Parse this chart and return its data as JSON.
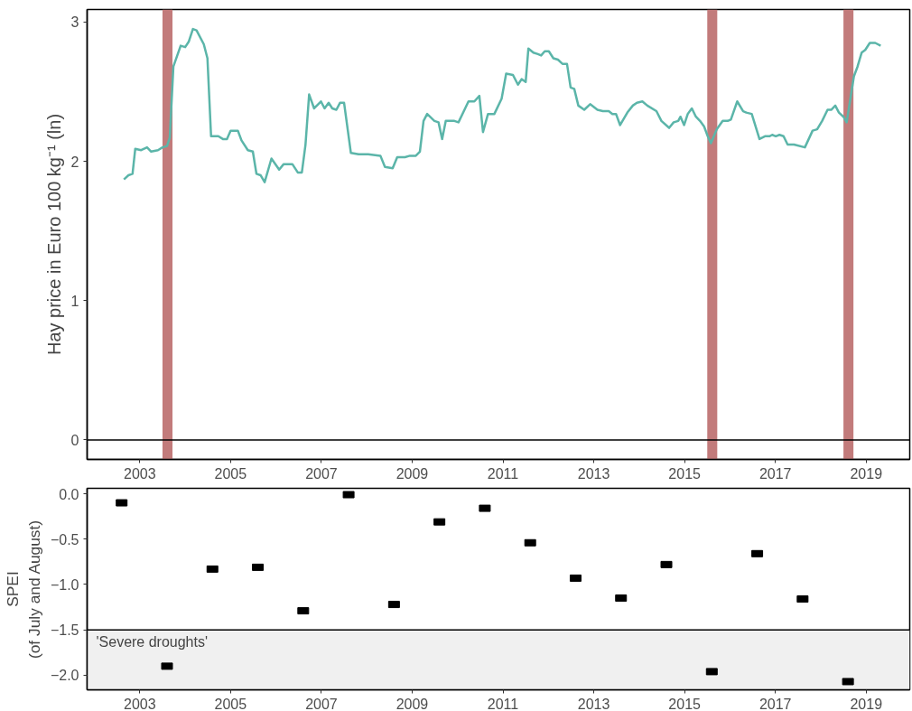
{
  "chart_data": [
    {
      "type": "line",
      "ylabel": "Hay price in Euro 100 kg⁻¹ (ln)",
      "xlim": [
        2001.84,
        2019.96
      ],
      "ylim": [
        -0.14,
        3.09
      ],
      "xticks": [
        2003,
        2005,
        2007,
        2009,
        2011,
        2013,
        2015,
        2017,
        2019
      ],
      "yticks": [
        0,
        1,
        2,
        3
      ],
      "grid": false,
      "line_style": "solid",
      "x": [
        2002.65,
        2002.75,
        2002.84,
        2002.9,
        2003.03,
        2003.16,
        2003.25,
        2003.4,
        2003.5,
        2003.6,
        2003.66,
        2003.74,
        2003.9,
        2004.0,
        2004.08,
        2004.17,
        2004.25,
        2004.41,
        2004.49,
        2004.57,
        2004.73,
        2004.83,
        2004.92,
        2005.0,
        2005.16,
        2005.24,
        2005.38,
        2005.49,
        2005.57,
        2005.66,
        2005.75,
        2005.9,
        2006.07,
        2006.17,
        2006.36,
        2006.48,
        2006.57,
        2006.65,
        2006.73,
        2006.84,
        2006.99,
        2007.07,
        2007.16,
        2007.24,
        2007.33,
        2007.41,
        2007.5,
        2007.65,
        2007.82,
        2008.03,
        2008.3,
        2008.4,
        2008.57,
        2008.67,
        2008.84,
        2008.95,
        2009.08,
        2009.17,
        2009.25,
        2009.33,
        2009.49,
        2009.58,
        2009.66,
        2009.74,
        2009.93,
        2010.02,
        2010.24,
        2010.37,
        2010.48,
        2010.56,
        2010.67,
        2010.81,
        2010.97,
        2011.07,
        2011.22,
        2011.33,
        2011.41,
        2011.5,
        2011.56,
        2011.67,
        2011.77,
        2011.84,
        2011.92,
        2012.01,
        2012.11,
        2012.21,
        2012.31,
        2012.41,
        2012.49,
        2012.57,
        2012.66,
        2012.79,
        2012.92,
        2013.08,
        2013.2,
        2013.33,
        2013.41,
        2013.49,
        2013.58,
        2013.74,
        2013.86,
        2013.95,
        2014.07,
        2014.18,
        2014.38,
        2014.49,
        2014.66,
        2014.76,
        2014.86,
        2014.91,
        2014.99,
        2015.07,
        2015.16,
        2015.25,
        2015.34,
        2015.43,
        2015.51,
        2015.58,
        2015.71,
        2015.84,
        2015.95,
        2016.02,
        2016.16,
        2016.29,
        2016.36,
        2016.48,
        2016.65,
        2016.77,
        2016.87,
        2016.93,
        2017.01,
        2017.09,
        2017.18,
        2017.27,
        2017.41,
        2017.65,
        2017.82,
        2017.92,
        2018.03,
        2018.15,
        2018.23,
        2018.32,
        2018.4,
        2018.5,
        2018.57,
        2018.73,
        2018.81,
        2018.9,
        2018.98,
        2019.08,
        2019.2,
        2019.32
      ],
      "series": [
        {
          "color": "#5bb5a9",
          "values": [
            1.87,
            1.9,
            1.91,
            2.09,
            2.08,
            2.1,
            2.07,
            2.08,
            2.1,
            2.11,
            2.17,
            2.68,
            2.83,
            2.82,
            2.86,
            2.95,
            2.94,
            2.84,
            2.74,
            2.18,
            2.18,
            2.16,
            2.16,
            2.22,
            2.22,
            2.15,
            2.08,
            2.07,
            1.91,
            1.9,
            1.85,
            2.02,
            1.94,
            1.98,
            1.98,
            1.92,
            1.92,
            2.12,
            2.48,
            2.38,
            2.43,
            2.38,
            2.42,
            2.38,
            2.37,
            2.42,
            2.42,
            2.06,
            2.05,
            2.05,
            2.04,
            1.96,
            1.95,
            2.03,
            2.03,
            2.04,
            2.04,
            2.07,
            2.29,
            2.34,
            2.29,
            2.28,
            2.16,
            2.29,
            2.29,
            2.28,
            2.43,
            2.43,
            2.47,
            2.21,
            2.34,
            2.34,
            2.45,
            2.63,
            2.62,
            2.55,
            2.59,
            2.57,
            2.81,
            2.78,
            2.77,
            2.76,
            2.79,
            2.79,
            2.74,
            2.73,
            2.7,
            2.7,
            2.53,
            2.52,
            2.4,
            2.37,
            2.41,
            2.37,
            2.36,
            2.36,
            2.34,
            2.34,
            2.26,
            2.35,
            2.4,
            2.42,
            2.43,
            2.4,
            2.36,
            2.29,
            2.24,
            2.28,
            2.29,
            2.32,
            2.26,
            2.34,
            2.38,
            2.32,
            2.29,
            2.25,
            2.18,
            2.13,
            2.23,
            2.29,
            2.29,
            2.3,
            2.43,
            2.36,
            2.35,
            2.34,
            2.16,
            2.18,
            2.18,
            2.19,
            2.18,
            2.19,
            2.18,
            2.12,
            2.12,
            2.1,
            2.22,
            2.23,
            2.29,
            2.37,
            2.37,
            2.4,
            2.35,
            2.32,
            2.28,
            2.61,
            2.68,
            2.78,
            2.8,
            2.85,
            2.85,
            2.83
          ]
        }
      ],
      "bands": [
        {
          "axis": "x",
          "from": 2003.5,
          "to": 2003.72,
          "color": "#c27b7b"
        },
        {
          "axis": "x",
          "from": 2015.5,
          "to": 2015.72,
          "color": "#c27b7b"
        },
        {
          "axis": "x",
          "from": 2018.5,
          "to": 2018.72,
          "color": "#c27b7b"
        }
      ],
      "ref_lines": [
        {
          "axis": "y",
          "value": 0,
          "color": "#000000"
        }
      ]
    },
    {
      "type": "scatter",
      "ylabel": "SPEI\n(of July and August)",
      "xlim": [
        2001.84,
        2019.96
      ],
      "ylim": [
        -2.16,
        0.06
      ],
      "xticks": [
        2003,
        2005,
        2007,
        2009,
        2011,
        2013,
        2015,
        2017,
        2019
      ],
      "yticks": [
        {
          "value": 0,
          "label": "0.0"
        },
        {
          "value": -0.5,
          "label": "−0.5"
        },
        {
          "value": -1,
          "label": "−1.0"
        },
        {
          "value": -1.5,
          "label": "−1.5"
        },
        {
          "value": -2,
          "label": "−2.0"
        }
      ],
      "grid": false,
      "marker": "square",
      "x": [
        2002.6,
        2003.6,
        2004.6,
        2005.6,
        2006.6,
        2007.6,
        2008.6,
        2009.6,
        2010.6,
        2011.6,
        2012.6,
        2013.6,
        2014.6,
        2015.6,
        2016.6,
        2017.6,
        2018.6
      ],
      "series": [
        {
          "color": "#000000",
          "values": [
            -0.1,
            -1.9,
            -0.83,
            -0.81,
            -1.29,
            -0.01,
            -1.22,
            -0.31,
            -0.16,
            -0.54,
            -0.93,
            -1.15,
            -0.78,
            -1.96,
            -0.66,
            -1.16,
            -2.07
          ]
        }
      ],
      "bands": [
        {
          "axis": "y",
          "from": -2.16,
          "to": -1.5,
          "color": "#f0f0f0",
          "label": "'Severe droughts'"
        }
      ],
      "ref_lines": [
        {
          "axis": "y",
          "value": -1.5,
          "color": "#000000"
        }
      ]
    }
  ]
}
